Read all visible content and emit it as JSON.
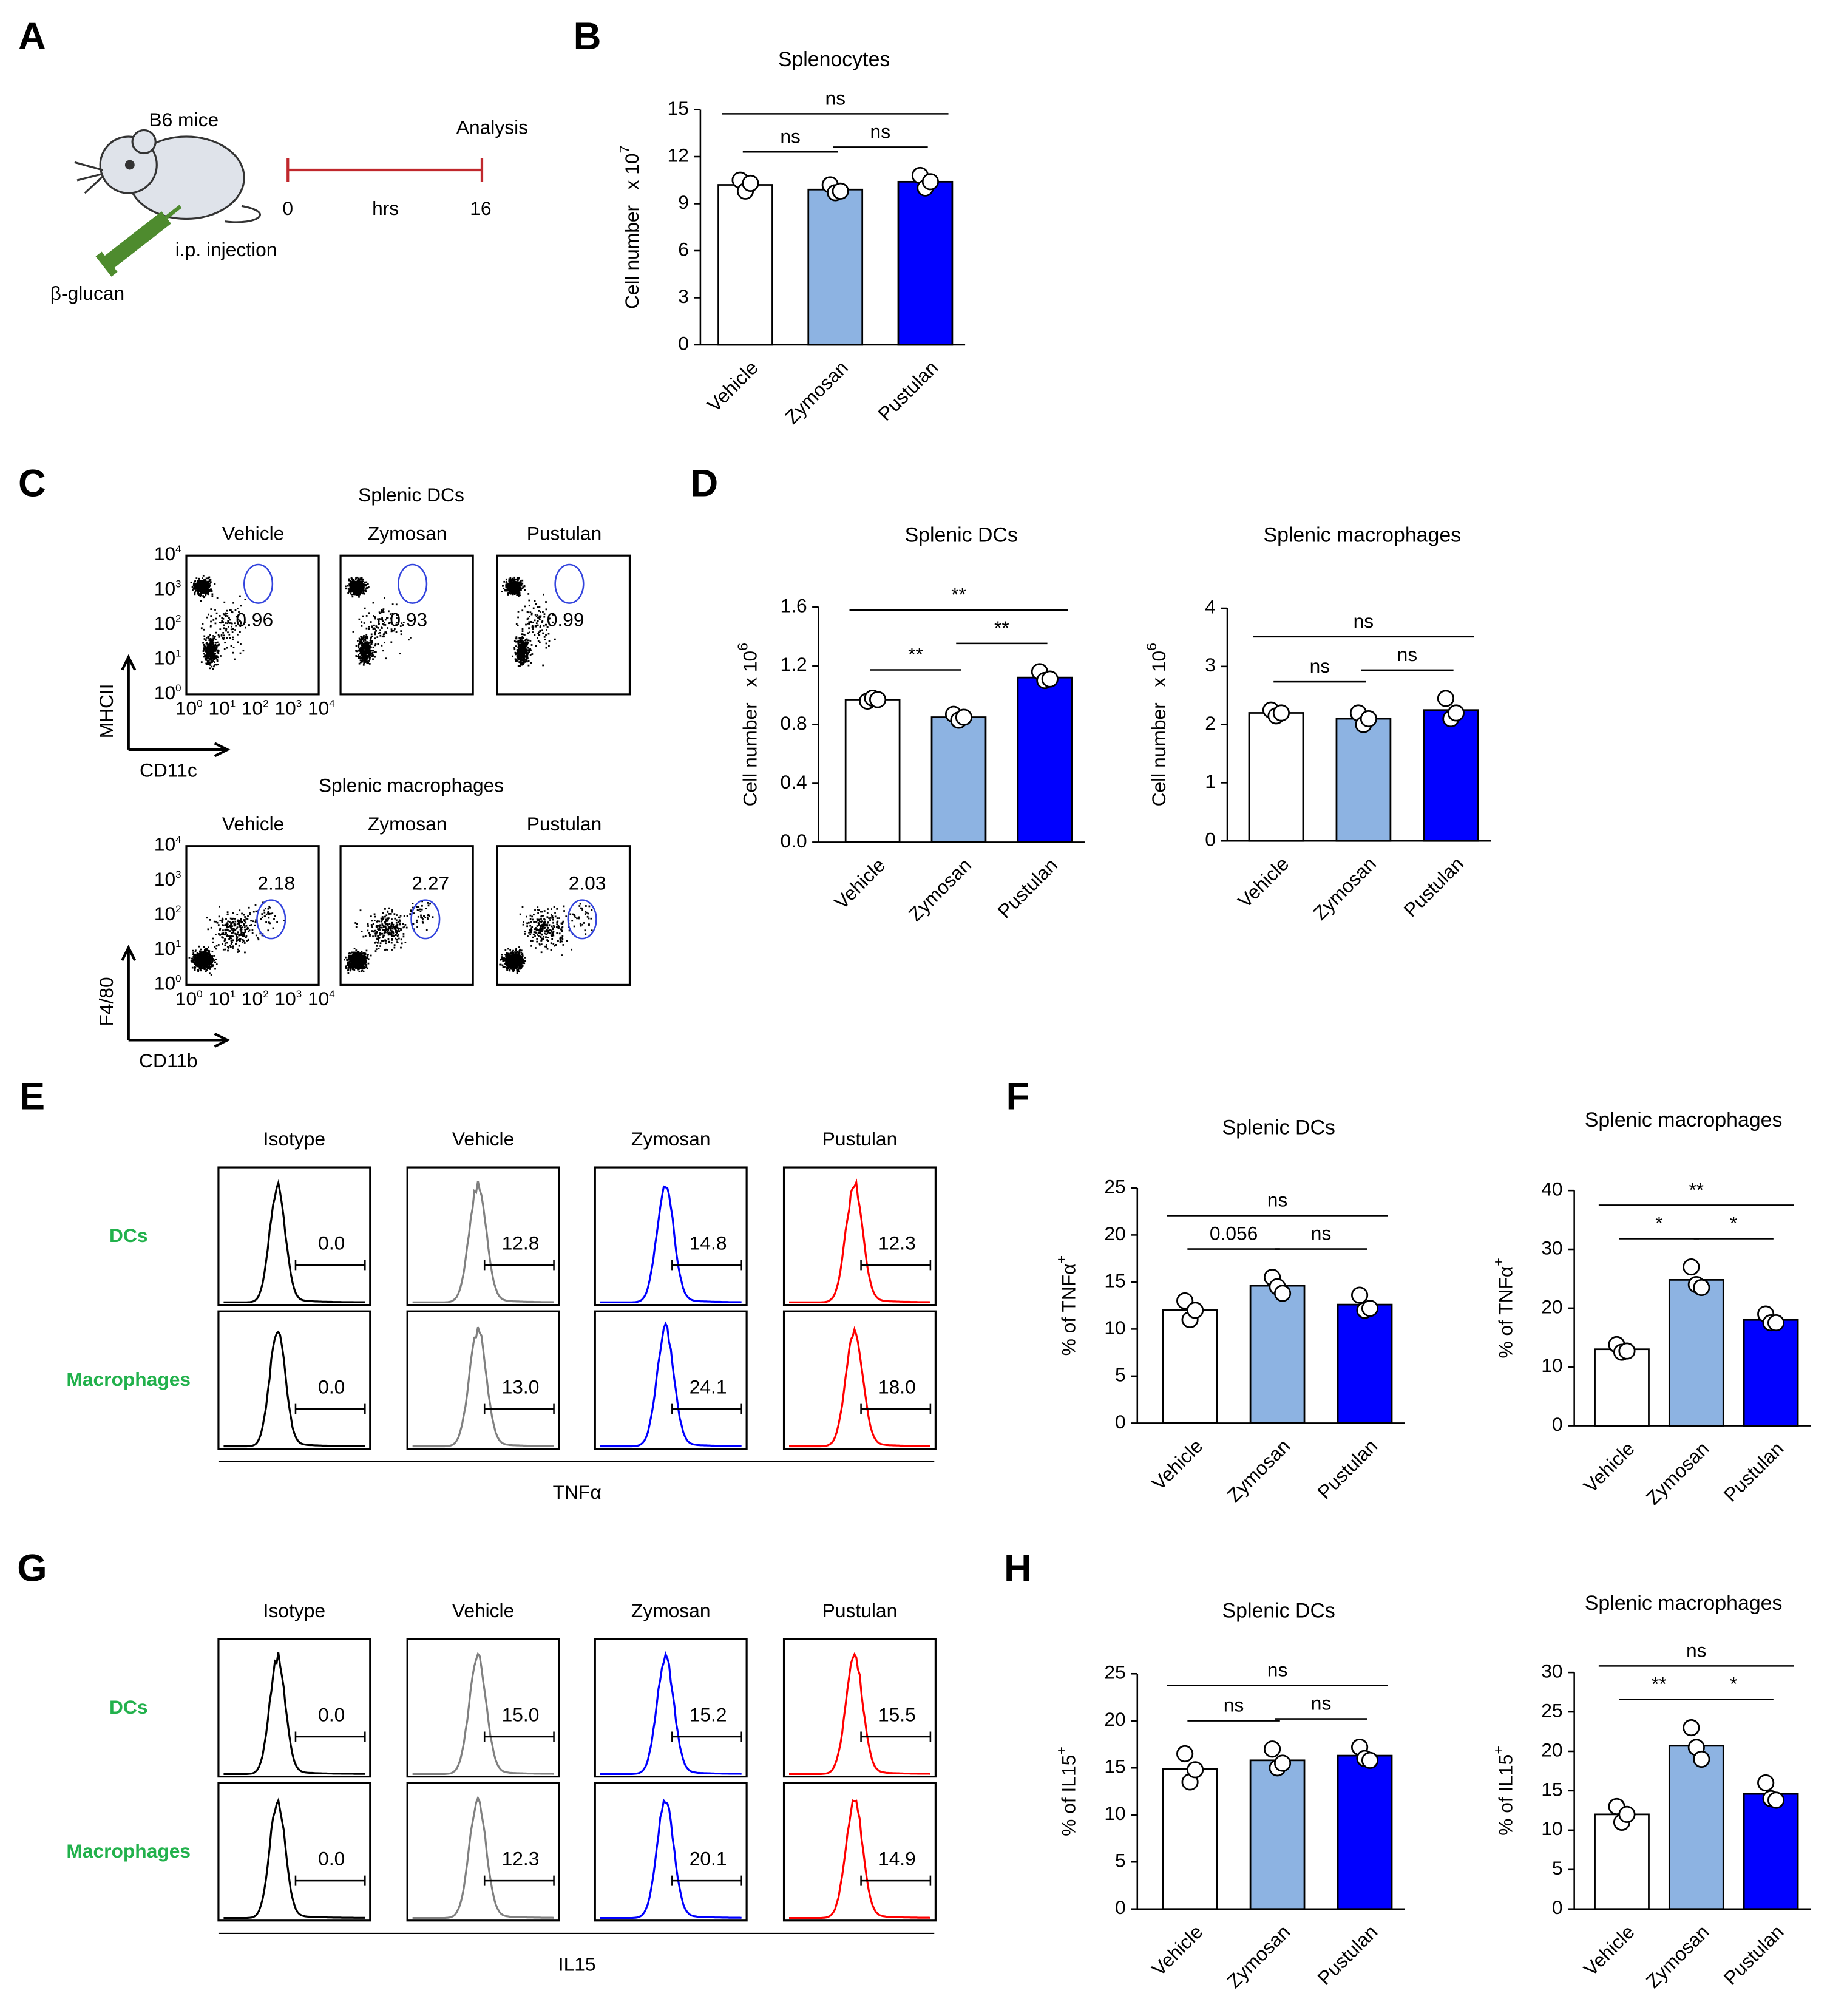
{
  "panel_labels": [
    "A",
    "B",
    "C",
    "D",
    "E",
    "F",
    "G",
    "H"
  ],
  "panel_a": {
    "mouse": "B6 mice",
    "event": "Analysis",
    "time_start": "0",
    "time_unit": "hrs",
    "time_end": "16",
    "route": "i.p. injection",
    "agent": "β-glucan"
  },
  "chart_data": [
    {
      "type": "bar",
      "title": "Splenocytes",
      "ylabel": "Cell number",
      "ylabel_unit": "x 10",
      "ylabel_exp": "7",
      "categories": [
        "Vehicle",
        "Zymosan",
        "Pustulan"
      ],
      "colors": [
        "#ffffff",
        "#8db3e2",
        "#0000ff"
      ],
      "values": [
        10.2,
        9.9,
        10.4
      ],
      "points": [
        [
          10.5,
          9.8,
          10.3
        ],
        [
          10.2,
          9.7,
          9.8
        ],
        [
          10.8,
          10.0,
          10.4
        ]
      ],
      "ylim": [
        0,
        15
      ],
      "yticks": [
        0,
        3,
        6,
        9,
        12,
        15
      ],
      "comparisons": [
        {
          "between": [
            "Vehicle",
            "Zymosan"
          ],
          "label": "ns"
        },
        {
          "between": [
            "Zymosan",
            "Pustulan"
          ],
          "label": "ns"
        },
        {
          "between": [
            "Vehicle",
            "Pustulan"
          ],
          "label": "ns"
        }
      ]
    },
    {
      "type": "bar",
      "title": "Splenic DCs",
      "ylabel": "Cell number",
      "ylabel_unit": "x 10",
      "ylabel_exp": "6",
      "categories": [
        "Vehicle",
        "Zymosan",
        "Pustulan"
      ],
      "colors": [
        "#ffffff",
        "#8db3e2",
        "#0000ff"
      ],
      "values": [
        0.97,
        0.85,
        1.12
      ],
      "points": [
        [
          0.96,
          0.98,
          0.97
        ],
        [
          0.87,
          0.83,
          0.85
        ],
        [
          1.16,
          1.1,
          1.11
        ]
      ],
      "ylim": [
        0,
        1.6
      ],
      "yticks": [
        {
          "value": 0,
          "label": "0.0"
        },
        0.4,
        0.8,
        1.2,
        1.6
      ],
      "comparisons": [
        {
          "between": [
            "Vehicle",
            "Zymosan"
          ],
          "label": "**"
        },
        {
          "between": [
            "Zymosan",
            "Pustulan"
          ],
          "label": "**"
        },
        {
          "between": [
            "Vehicle",
            "Pustulan"
          ],
          "label": "**"
        }
      ]
    },
    {
      "type": "bar",
      "title": "Splenic macrophages",
      "ylabel": "Cell number",
      "ylabel_unit": "x 10",
      "ylabel_exp": "6",
      "categories": [
        "Vehicle",
        "Zymosan",
        "Pustulan"
      ],
      "colors": [
        "#ffffff",
        "#8db3e2",
        "#0000ff"
      ],
      "values": [
        2.2,
        2.1,
        2.25
      ],
      "points": [
        [
          2.25,
          2.15,
          2.2
        ],
        [
          2.2,
          2.0,
          2.1
        ],
        [
          2.45,
          2.1,
          2.2
        ]
      ],
      "ylim": [
        0,
        4
      ],
      "yticks": [
        0,
        1,
        2,
        3,
        4
      ],
      "comparisons": [
        {
          "between": [
            "Vehicle",
            "Zymosan"
          ],
          "label": "ns"
        },
        {
          "between": [
            "Zymosan",
            "Pustulan"
          ],
          "label": "ns"
        },
        {
          "between": [
            "Vehicle",
            "Pustulan"
          ],
          "label": "ns"
        }
      ]
    },
    {
      "type": "bar",
      "title": "Splenic DCs",
      "ylabel": "% of TNFα",
      "ylabel_sup": "+",
      "categories": [
        "Vehicle",
        "Zymosan",
        "Pustulan"
      ],
      "colors": [
        "#ffffff",
        "#8db3e2",
        "#0000ff"
      ],
      "values": [
        12.0,
        14.6,
        12.6
      ],
      "points": [
        [
          13,
          11,
          12
        ],
        [
          15.5,
          14.5,
          13.8
        ],
        [
          13.6,
          12,
          12.2
        ]
      ],
      "ylim": [
        0,
        25
      ],
      "yticks": [
        0,
        5,
        10,
        15,
        20,
        25
      ],
      "comparisons": [
        {
          "between": [
            "Vehicle",
            "Zymosan"
          ],
          "label": "0.056"
        },
        {
          "between": [
            "Zymosan",
            "Pustulan"
          ],
          "label": "ns"
        },
        {
          "between": [
            "Vehicle",
            "Pustulan"
          ],
          "label": "ns"
        }
      ]
    },
    {
      "type": "bar",
      "title": "Splenic macrophages",
      "ylabel": "% of TNFα",
      "ylabel_sup": "+",
      "categories": [
        "Vehicle",
        "Zymosan",
        "Pustulan"
      ],
      "colors": [
        "#ffffff",
        "#8db3e2",
        "#0000ff"
      ],
      "values": [
        13,
        24.8,
        18
      ],
      "points": [
        [
          13.8,
          12.5,
          12.7
        ],
        [
          27,
          24,
          23.5
        ],
        [
          19,
          17.5,
          17.5
        ]
      ],
      "ylim": [
        0,
        40
      ],
      "yticks": [
        0,
        10,
        20,
        30,
        40
      ],
      "comparisons": [
        {
          "between": [
            "Vehicle",
            "Zymosan"
          ],
          "label": "*"
        },
        {
          "between": [
            "Zymosan",
            "Pustulan"
          ],
          "label": "*"
        },
        {
          "between": [
            "Vehicle",
            "Pustulan"
          ],
          "label": "**"
        }
      ]
    },
    {
      "type": "bar",
      "title": "Splenic DCs",
      "ylabel": "% of IL15",
      "ylabel_sup": "+",
      "categories": [
        "Vehicle",
        "Zymosan",
        "Pustulan"
      ],
      "colors": [
        "#ffffff",
        "#8db3e2",
        "#0000ff"
      ],
      "values": [
        14.9,
        15.8,
        16.3
      ],
      "points": [
        [
          16.5,
          13.5,
          14.8
        ],
        [
          17,
          15,
          15.5
        ],
        [
          17.2,
          16,
          15.8
        ]
      ],
      "ylim": [
        0,
        25
      ],
      "yticks": [
        0,
        5,
        10,
        15,
        20,
        25
      ],
      "comparisons": [
        {
          "between": [
            "Vehicle",
            "Zymosan"
          ],
          "label": "ns"
        },
        {
          "between": [
            "Zymosan",
            "Pustulan"
          ],
          "label": "ns"
        },
        {
          "between": [
            "Vehicle",
            "Pustulan"
          ],
          "label": "ns"
        }
      ]
    },
    {
      "type": "bar",
      "title": "Splenic macrophages",
      "ylabel": "% of IL15",
      "ylabel_sup": "+",
      "categories": [
        "Vehicle",
        "Zymosan",
        "Pustulan"
      ],
      "colors": [
        "#ffffff",
        "#8db3e2",
        "#0000ff"
      ],
      "values": [
        12,
        20.7,
        14.6
      ],
      "points": [
        [
          13,
          11,
          12
        ],
        [
          23,
          20.5,
          19
        ],
        [
          16,
          14,
          13.8
        ]
      ],
      "ylim": [
        0,
        30
      ],
      "yticks": [
        0,
        5,
        10,
        15,
        20,
        25,
        30
      ],
      "comparisons": [
        {
          "between": [
            "Vehicle",
            "Zymosan"
          ],
          "label": "**"
        },
        {
          "between": [
            "Zymosan",
            "Pustulan"
          ],
          "label": "*"
        },
        {
          "between": [
            "Vehicle",
            "Pustulan"
          ],
          "label": "ns"
        }
      ]
    }
  ],
  "flow": {
    "C": {
      "decade_base": "10",
      "decade_exps": [
        "0",
        "1",
        "2",
        "3",
        "4"
      ],
      "rows": [
        {
          "title": "Splenic DCs",
          "columns": [
            "Vehicle",
            "Zymosan",
            "Pustulan"
          ],
          "gates": [
            "0.96",
            "0.93",
            "0.99"
          ],
          "y_axis": "MHCII",
          "x_axis": "CD11c"
        },
        {
          "title": "Splenic macrophages",
          "columns": [
            "Vehicle",
            "Zymosan",
            "Pustulan"
          ],
          "gates": [
            "2.18",
            "2.27",
            "2.03"
          ],
          "y_axis": "F4/80",
          "x_axis": "CD11b"
        }
      ]
    },
    "E": {
      "columns": [
        "Isotype",
        "Vehicle",
        "Zymosan",
        "Pustulan"
      ],
      "line_colors": [
        "#000000",
        "#808080",
        "#0000ff",
        "#ff0000"
      ],
      "rows": [
        {
          "label": "DCs",
          "gates": [
            "0.0",
            "12.8",
            "14.8",
            "12.3"
          ]
        },
        {
          "label": "Macrophages",
          "gates": [
            "0.0",
            "13.0",
            "24.1",
            "18.0"
          ]
        }
      ],
      "x_axis": "TNFα"
    },
    "G": {
      "columns": [
        "Isotype",
        "Vehicle",
        "Zymosan",
        "Pustulan"
      ],
      "line_colors": [
        "#000000",
        "#808080",
        "#0000ff",
        "#ff0000"
      ],
      "rows": [
        {
          "label": "DCs",
          "gates": [
            "0.0",
            "15.0",
            "15.2",
            "15.5"
          ]
        },
        {
          "label": "Macrophages",
          "gates": [
            "0.0",
            "12.3",
            "20.1",
            "14.9"
          ]
        }
      ],
      "x_axis": "IL15"
    }
  }
}
